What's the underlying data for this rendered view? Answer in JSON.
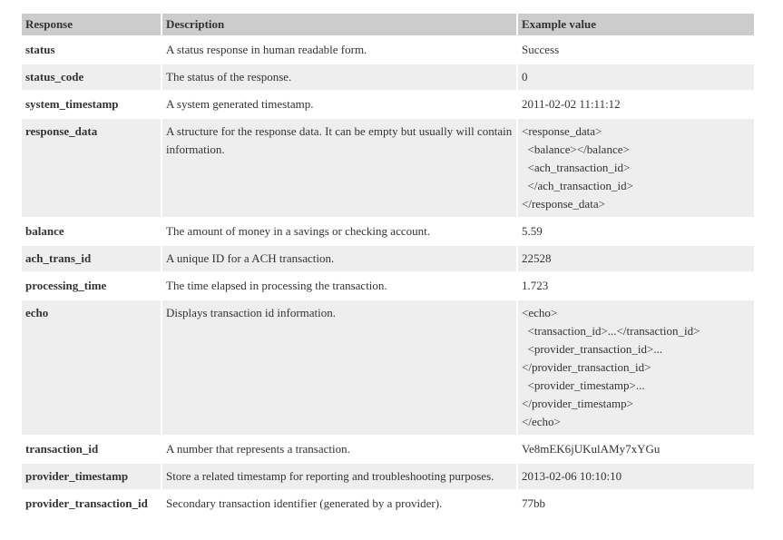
{
  "table": {
    "headers": {
      "response": "Response",
      "description": "Description",
      "example": "Example value"
    },
    "rows": [
      {
        "name": "status",
        "description": "A status response in human readable form.",
        "example": "Success"
      },
      {
        "name": "status_code",
        "description": "The status of the response.",
        "example": "0"
      },
      {
        "name": "system_timestamp",
        "description": "A system generated timestamp.",
        "example": "2011-02-02 11:11:12"
      },
      {
        "name": "response_data",
        "description": "A structure for the response data. It can be empty but usually will contain information.",
        "example": "<response_data>\n  <balance></balance>\n  <ach_transaction_id>\n  </ach_transaction_id>\n</response_data>"
      },
      {
        "name": "balance",
        "description": "The amount of money in a savings or checking account.",
        "example": "5.59"
      },
      {
        "name": "ach_trans_id",
        "description": "A unique ID for a ACH transaction.",
        "example": "22528"
      },
      {
        "name": "processing_time",
        "description": "The time elapsed in processing the transaction.",
        "example": "1.723"
      },
      {
        "name": "echo",
        "description": "Displays transaction id information.",
        "example": "<echo>\n  <transaction_id>...</transaction_id>\n  <provider_transaction_id>...\n</provider_transaction_id>\n  <provider_timestamp>...\n</provider_timestamp>\n</echo>"
      },
      {
        "name": "transaction_id",
        "description": "A number that represents a transaction.",
        "example": "Ve8mEK6jUKulAMy7xYGu"
      },
      {
        "name": "provider_timestamp",
        "description": "Store a related timestamp for reporting and troubleshooting purposes.",
        "example": "2013-02-06 10:10:10"
      },
      {
        "name": "provider_transaction_id",
        "description": "Secondary transaction identifier (generated by a provider).",
        "example": "77bb"
      }
    ]
  }
}
